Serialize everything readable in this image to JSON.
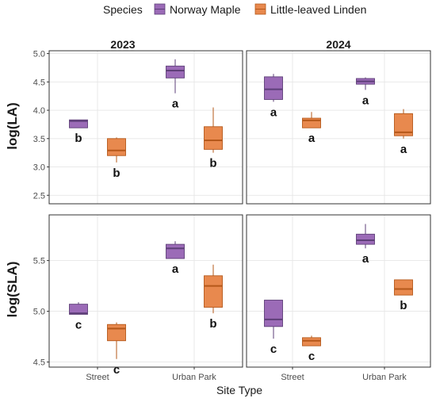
{
  "legend": {
    "title": "Species",
    "entries": [
      {
        "label": "Norway Maple",
        "color": "#9B6BB7"
      },
      {
        "label": "Little-leaved Linden",
        "color": "#E8894E"
      }
    ]
  },
  "chart_data": {
    "type": "box",
    "xlabel": "Site Type",
    "categories": [
      "Street",
      "Urban Park"
    ],
    "columns": [
      "2023",
      "2024"
    ],
    "colors": {
      "Norway Maple": "#9B6BB7",
      "Little-leaved Linden": "#E8894E"
    },
    "grid": true,
    "legend_position": "top",
    "rows": [
      {
        "ylabel": "log(LA)",
        "ylim": [
          2.35,
          5.05
        ],
        "yticks": [
          "2.5",
          "3.0",
          "3.5",
          "4.0",
          "4.5",
          "5.0"
        ],
        "panels": [
          {
            "title": "2023",
            "boxes": [
              {
                "category": "Street",
                "series": "Norway Maple",
                "min": 3.69,
                "q1": 3.69,
                "median": 3.81,
                "q3": 3.83,
                "max": 3.83,
                "letter": "b"
              },
              {
                "category": "Street",
                "series": "Little-leaved Linden",
                "min": 3.08,
                "q1": 3.2,
                "median": 3.29,
                "q3": 3.5,
                "max": 3.52,
                "letter": "b"
              },
              {
                "category": "Urban Park",
                "series": "Norway Maple",
                "min": 4.3,
                "q1": 4.57,
                "median": 4.7,
                "q3": 4.78,
                "max": 4.9,
                "letter": "a"
              },
              {
                "category": "Urban Park",
                "series": "Little-leaved Linden",
                "min": 3.25,
                "q1": 3.31,
                "median": 3.47,
                "q3": 3.71,
                "max": 4.05,
                "letter": "b"
              }
            ]
          },
          {
            "title": "2024",
            "boxes": [
              {
                "category": "Street",
                "series": "Norway Maple",
                "min": 4.15,
                "q1": 4.19,
                "median": 4.37,
                "q3": 4.59,
                "max": 4.64,
                "letter": "a"
              },
              {
                "category": "Street",
                "series": "Little-leaved Linden",
                "min": 3.69,
                "q1": 3.69,
                "median": 3.82,
                "q3": 3.86,
                "max": 3.97,
                "letter": "a"
              },
              {
                "category": "Urban Park",
                "series": "Norway Maple",
                "min": 4.36,
                "q1": 4.46,
                "median": 4.51,
                "q3": 4.56,
                "max": 4.58,
                "letter": "a"
              },
              {
                "category": "Urban Park",
                "series": "Little-leaved Linden",
                "min": 3.5,
                "q1": 3.55,
                "median": 3.61,
                "q3": 3.94,
                "max": 4.02,
                "letter": "a"
              }
            ]
          }
        ]
      },
      {
        "ylabel": "log(SLA)",
        "ylim": [
          4.45,
          5.95
        ],
        "yticks": [
          "4.5",
          "5.0",
          "5.5"
        ],
        "panels": [
          {
            "title": "2023",
            "boxes": [
              {
                "category": "Street",
                "series": "Norway Maple",
                "min": 4.97,
                "q1": 4.97,
                "median": 4.98,
                "q3": 5.07,
                "max": 5.09,
                "letter": "c"
              },
              {
                "category": "Street",
                "series": "Little-leaved Linden",
                "min": 4.53,
                "q1": 4.71,
                "median": 4.83,
                "q3": 4.87,
                "max": 4.89,
                "letter": "c"
              },
              {
                "category": "Urban Park",
                "series": "Norway Maple",
                "min": 5.52,
                "q1": 5.52,
                "median": 5.62,
                "q3": 5.66,
                "max": 5.69,
                "letter": "a"
              },
              {
                "category": "Urban Park",
                "series": "Little-leaved Linden",
                "min": 4.98,
                "q1": 5.04,
                "median": 5.25,
                "q3": 5.35,
                "max": 5.46,
                "letter": "b"
              }
            ]
          },
          {
            "title": "2024",
            "boxes": [
              {
                "category": "Street",
                "series": "Norway Maple",
                "min": 4.73,
                "q1": 4.85,
                "median": 4.92,
                "q3": 5.11,
                "max": 5.11,
                "letter": "c"
              },
              {
                "category": "Street",
                "series": "Little-leaved Linden",
                "min": 4.66,
                "q1": 4.66,
                "median": 4.71,
                "q3": 4.74,
                "max": 4.76,
                "letter": "c"
              },
              {
                "category": "Urban Park",
                "series": "Norway Maple",
                "min": 5.62,
                "q1": 5.66,
                "median": 5.7,
                "q3": 5.76,
                "max": 5.86,
                "letter": "a"
              },
              {
                "category": "Urban Park",
                "series": "Little-leaved Linden",
                "min": 5.16,
                "q1": 5.16,
                "median": 5.22,
                "q3": 5.31,
                "max": 5.31,
                "letter": "b"
              }
            ]
          }
        ]
      }
    ]
  }
}
